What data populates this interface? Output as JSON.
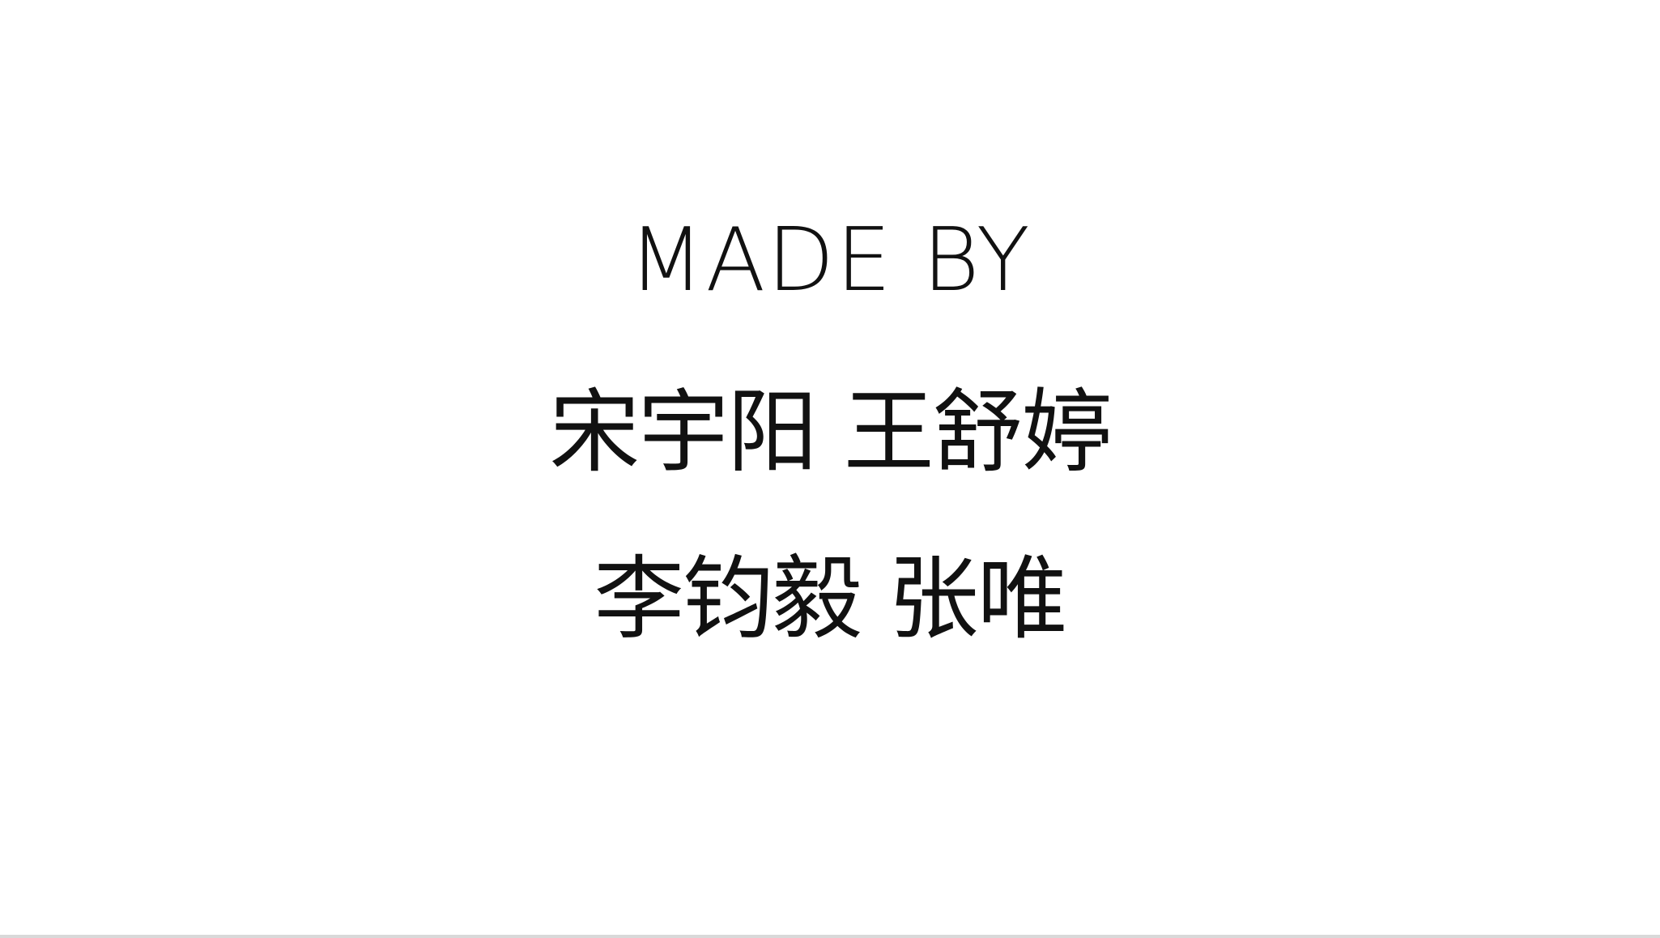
{
  "slide": {
    "heading": "MADE BY",
    "names_line_1": "宋宇阳 王舒婷",
    "names_line_2": "李钧毅 张唯"
  },
  "colors": {
    "background": "#ffffff",
    "text": "#111111"
  }
}
